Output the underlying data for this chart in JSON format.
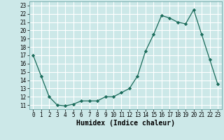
{
  "x": [
    0,
    1,
    2,
    3,
    4,
    5,
    6,
    7,
    8,
    9,
    10,
    11,
    12,
    13,
    14,
    15,
    16,
    17,
    18,
    19,
    20,
    21,
    22,
    23
  ],
  "y": [
    17.0,
    14.5,
    12.0,
    11.0,
    10.9,
    11.1,
    11.5,
    11.5,
    11.5,
    12.0,
    12.0,
    12.5,
    13.0,
    14.5,
    17.5,
    19.5,
    21.8,
    21.5,
    21.0,
    20.8,
    22.5,
    19.5,
    16.5,
    13.5
  ],
  "line_color": "#1a6b5a",
  "marker": "D",
  "marker_size": 2.2,
  "bg_color": "#cce8e8",
  "grid_color": "#ffffff",
  "xlabel": "Humidex (Indice chaleur)",
  "ylabel": "",
  "xlim": [
    -0.5,
    23.5
  ],
  "ylim": [
    10.5,
    23.5
  ],
  "yticks": [
    11,
    12,
    13,
    14,
    15,
    16,
    17,
    18,
    19,
    20,
    21,
    22,
    23
  ],
  "xticks": [
    0,
    1,
    2,
    3,
    4,
    5,
    6,
    7,
    8,
    9,
    10,
    11,
    12,
    13,
    14,
    15,
    16,
    17,
    18,
    19,
    20,
    21,
    22,
    23
  ],
  "tick_fontsize": 5.5,
  "xlabel_fontsize": 7.0
}
